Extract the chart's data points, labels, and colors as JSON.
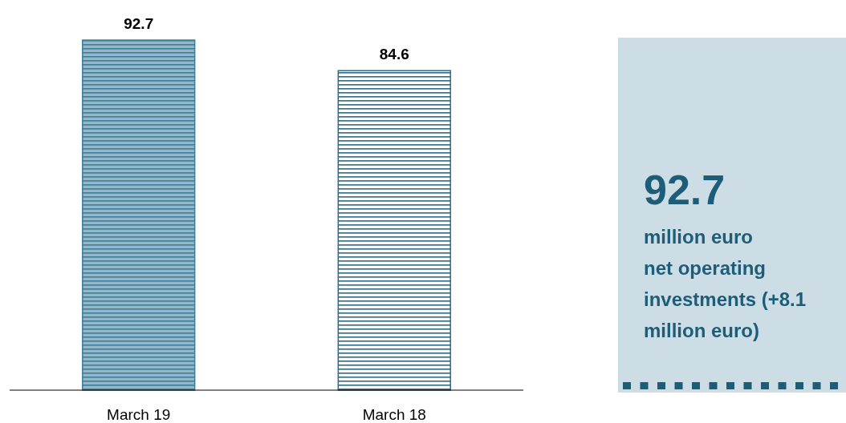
{
  "chart_data": [
    {
      "type": "bar",
      "categories": [
        "March 19",
        "March 18"
      ],
      "values": [
        92.7,
        84.6
      ],
      "colors": [
        "#3d7d9b",
        "#2a6b8a"
      ],
      "data_labels": true
    },
    {
      "type": "other",
      "title": "92.7",
      "annotations": [
        "million euro",
        "net operating",
        "investments (+8.1",
        "million euro)"
      ]
    }
  ]
}
